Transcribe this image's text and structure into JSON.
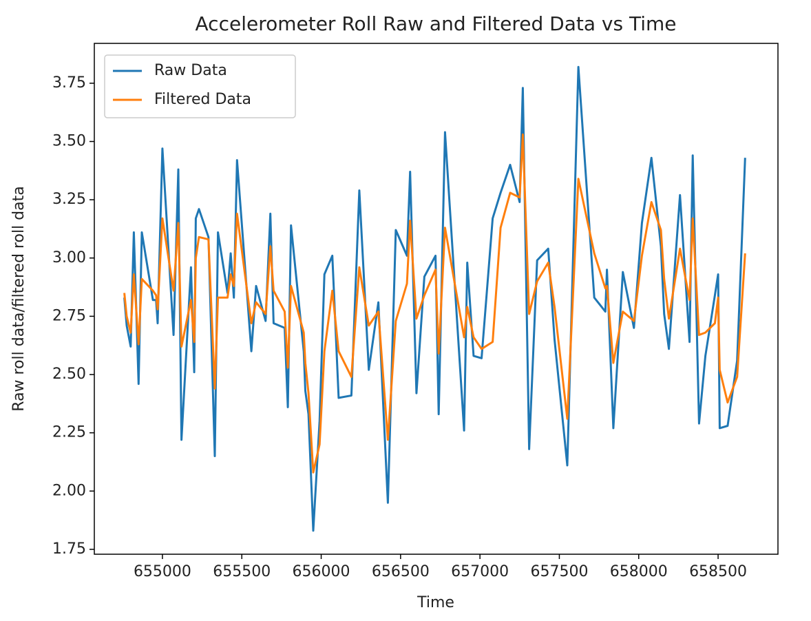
{
  "chart_data": {
    "type": "line",
    "title": "Accelerometer Roll Raw and Filtered Data vs Time",
    "x_label": "Time",
    "y_label": "Raw roll data/filtered roll data",
    "x": [
      654760,
      654775,
      654800,
      654820,
      654850,
      654870,
      654940,
      654960,
      654970,
      655000,
      655070,
      655100,
      655120,
      655180,
      655200,
      655210,
      655230,
      655290,
      655330,
      655350,
      655410,
      655430,
      655450,
      655470,
      655560,
      655590,
      655650,
      655680,
      655700,
      655770,
      655790,
      655810,
      655890,
      655900,
      655920,
      655950,
      655990,
      656020,
      656070,
      656110,
      656190,
      656240,
      656300,
      656360,
      656420,
      656470,
      656540,
      656560,
      656600,
      656650,
      656720,
      656740,
      656780,
      656900,
      656920,
      656960,
      657010,
      657080,
      657130,
      657190,
      657250,
      657270,
      657310,
      657360,
      657430,
      657470,
      657550,
      657620,
      657720,
      657790,
      657800,
      657840,
      657900,
      657970,
      658020,
      658080,
      658140,
      658160,
      658190,
      658260,
      658320,
      658340,
      658380,
      658420,
      658480,
      658500,
      658510,
      658560,
      658620,
      658670
    ],
    "series": [
      {
        "name": "Raw Data",
        "color": "#1f77b4",
        "values": [
          2.83,
          2.71,
          2.62,
          3.11,
          2.46,
          3.11,
          2.82,
          2.82,
          2.72,
          3.47,
          2.67,
          3.38,
          2.22,
          2.96,
          2.51,
          3.17,
          3.21,
          3.09,
          2.15,
          3.11,
          2.85,
          3.02,
          2.83,
          3.42,
          2.6,
          2.88,
          2.73,
          3.19,
          2.72,
          2.7,
          2.36,
          3.14,
          2.6,
          2.43,
          2.33,
          1.83,
          2.3,
          2.93,
          3.01,
          2.4,
          2.41,
          3.29,
          2.52,
          2.81,
          1.95,
          3.12,
          3.01,
          3.37,
          2.42,
          2.92,
          3.01,
          2.33,
          3.54,
          2.26,
          2.98,
          2.58,
          2.57,
          3.17,
          3.28,
          3.4,
          3.24,
          3.73,
          2.18,
          2.99,
          3.04,
          2.65,
          2.11,
          3.82,
          2.83,
          2.77,
          2.95,
          2.27,
          2.94,
          2.7,
          3.15,
          3.43,
          3.05,
          2.76,
          2.61,
          3.27,
          2.64,
          3.44,
          2.29,
          2.58,
          2.84,
          2.93,
          2.27,
          2.28,
          2.56,
          3.43
        ]
      },
      {
        "name": "Filtered Data",
        "color": "#ff7f0e",
        "values": [
          2.85,
          2.75,
          2.68,
          2.93,
          2.63,
          2.91,
          2.86,
          2.84,
          2.78,
          3.17,
          2.86,
          3.15,
          2.62,
          2.82,
          2.64,
          3.0,
          3.09,
          3.08,
          2.44,
          2.83,
          2.83,
          2.93,
          2.88,
          3.19,
          2.72,
          2.81,
          2.76,
          3.05,
          2.86,
          2.77,
          2.53,
          2.88,
          2.68,
          2.55,
          2.42,
          2.08,
          2.2,
          2.6,
          2.86,
          2.6,
          2.49,
          2.96,
          2.71,
          2.77,
          2.22,
          2.73,
          2.89,
          3.16,
          2.74,
          2.84,
          2.95,
          2.59,
          3.13,
          2.66,
          2.79,
          2.66,
          2.61,
          2.64,
          3.13,
          3.28,
          3.26,
          3.53,
          2.76,
          2.9,
          2.98,
          2.79,
          2.31,
          3.34,
          3.02,
          2.87,
          2.88,
          2.55,
          2.77,
          2.73,
          3.01,
          3.24,
          3.12,
          2.91,
          2.74,
          3.04,
          2.82,
          3.17,
          2.67,
          2.68,
          2.72,
          2.83,
          2.52,
          2.38,
          2.49,
          3.02
        ]
      }
    ],
    "xlim": [
      654571,
      658877
    ],
    "ylim": [
      1.729,
      3.921
    ],
    "xticks": [
      655000,
      655500,
      656000,
      656500,
      657000,
      657500,
      658000,
      658500
    ],
    "yticks": [
      1.75,
      {
        "value": 2.0,
        "label": "2.00"
      },
      2.25,
      {
        "value": 2.5,
        "label": "2.50"
      },
      2.75,
      {
        "value": 3.0,
        "label": "3.00"
      },
      3.25,
      {
        "value": 3.5,
        "label": "3.50"
      },
      3.75
    ],
    "legend": "upper left",
    "grid": false
  }
}
